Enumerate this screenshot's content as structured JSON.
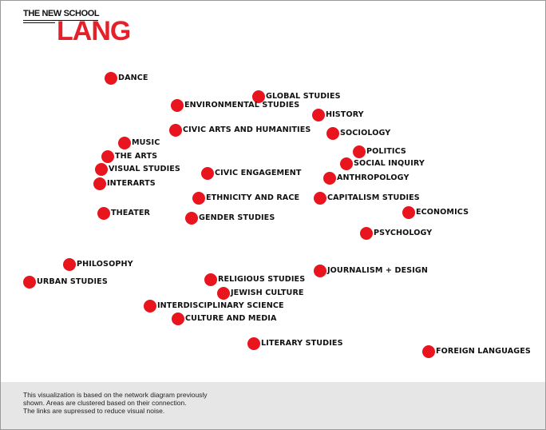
{
  "logo": {
    "top_text": "THE NEW SCHOOL",
    "main_text": "LANG"
  },
  "nodes": [
    {
      "label": "DANCE"
    },
    {
      "label": "GLOBAL STUDIES"
    },
    {
      "label": "ENVIRONMENTAL STUDIES"
    },
    {
      "label": "HISTORY"
    },
    {
      "label": "CIVIC ARTS AND HUMANITIES"
    },
    {
      "label": "SOCIOLOGY"
    },
    {
      "label": "MUSIC"
    },
    {
      "label": "THE ARTS"
    },
    {
      "label": "POLITICS"
    },
    {
      "label": "SOCIAL INQUIRY"
    },
    {
      "label": "VISUAL STUDIES"
    },
    {
      "label": "CIVIC ENGAGEMENT"
    },
    {
      "label": "ANTHROPOLOGY"
    },
    {
      "label": "INTERARTS"
    },
    {
      "label": "ETHNICITY AND RACE"
    },
    {
      "label": "CAPITALISM STUDIES"
    },
    {
      "label": "ECONOMICS"
    },
    {
      "label": "THEATER"
    },
    {
      "label": "GENDER STUDIES"
    },
    {
      "label": "PSYCHOLOGY"
    },
    {
      "label": "PHILOSOPHY"
    },
    {
      "label": "JOURNALISM + DESIGN"
    },
    {
      "label": "URBAN STUDIES"
    },
    {
      "label": "RELIGIOUS STUDIES"
    },
    {
      "label": "JEWISH CULTURE"
    },
    {
      "label": "INTERDISCIPLINARY SCIENCE"
    },
    {
      "label": "CULTURE AND MEDIA"
    },
    {
      "label": "LITERARY STUDIES"
    },
    {
      "label": "FOREIGN LANGUAGES"
    }
  ],
  "footer": {
    "lines": [
      "This visualization is based on the network diagram previously",
      "shown. Areas are clustered based on their connection.",
      "The links are supressed to reduce visual noise."
    ]
  },
  "colors": {
    "node": "#e8141e",
    "logo_accent": "#e4202a",
    "footer_bg": "#e6e6e6"
  }
}
